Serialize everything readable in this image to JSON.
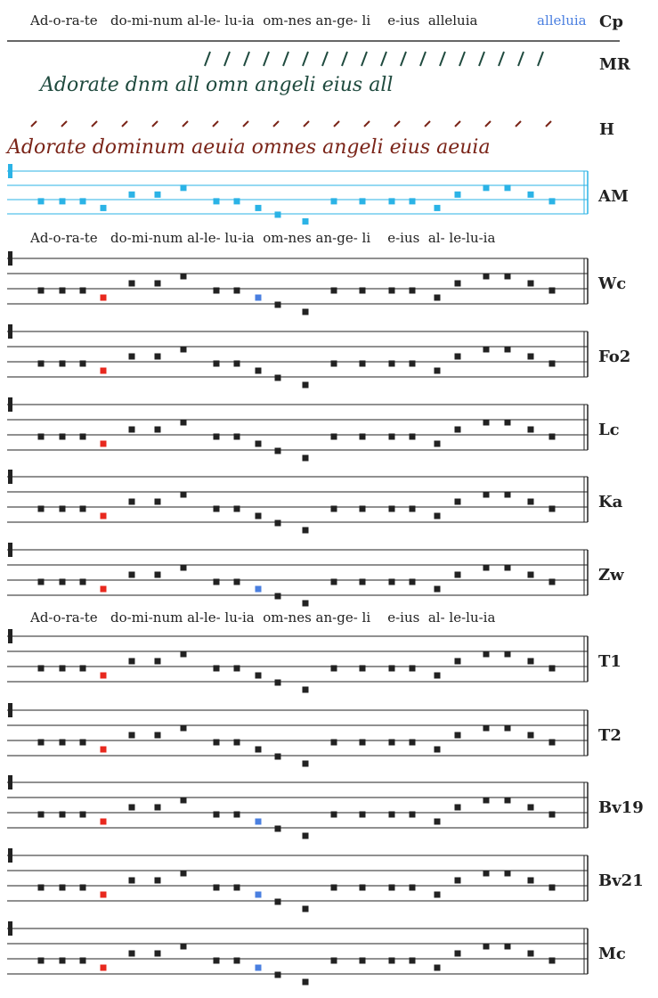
{
  "header": {
    "syllables": "Ad-o-ra-te   do-mi-num al-le- lu-ia  om-nes an-ge- li    e-ius  alleluia",
    "highlight": "alleluia",
    "siglum": "Cp"
  },
  "manuscripts": [
    {
      "siglum": "MR",
      "text": "Adorate dnm all omn angeli eius all"
    },
    {
      "siglum": "H",
      "text": "Adorate dominum aeuia omnes angeli eius aeuia"
    }
  ],
  "text_rows": [
    "Ad-o-ra-te   do-mi-num al-le- lu-ia  om-nes an-ge- li    e-ius  al- le-lu-ia",
    "Ad-o-ra-te   do-mi-num al-le- lu-ia  om-nes an-ge- li    e-ius  al- le-lu-ia"
  ],
  "staves": [
    {
      "siglum": "AM"
    },
    {
      "siglum": "Wc"
    },
    {
      "siglum": "Fo2"
    },
    {
      "siglum": "Lc"
    },
    {
      "siglum": "Ka"
    },
    {
      "siglum": "Zw"
    },
    {
      "siglum": "T1"
    },
    {
      "siglum": "T2"
    },
    {
      "siglum": "Bv19"
    },
    {
      "siglum": "Bv21"
    },
    {
      "siglum": "Mc"
    }
  ]
}
